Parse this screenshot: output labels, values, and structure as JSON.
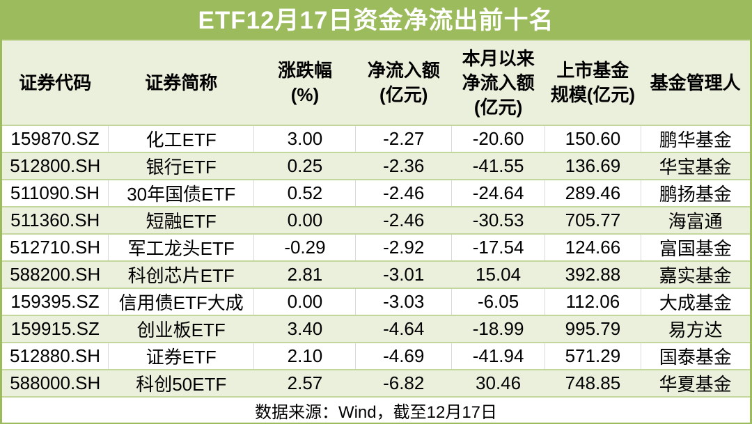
{
  "chart_data": {
    "type": "table",
    "title": "ETF12月17日资金净流出前十名",
    "columns": [
      [
        "证券代码"
      ],
      [
        "证券简称"
      ],
      [
        "涨跌幅",
        "(%)"
      ],
      [
        "净流入额",
        "(亿元)"
      ],
      [
        "本月以来",
        "净流入额",
        "(亿元)"
      ],
      [
        "上市基金",
        "规模(亿元)"
      ],
      [
        "基金管理人"
      ]
    ],
    "rows": [
      [
        "159870.SZ",
        "化工ETF",
        "3.00",
        "-2.27",
        "-20.60",
        "150.60",
        "鹏华基金"
      ],
      [
        "512800.SH",
        "银行ETF",
        "0.25",
        "-2.36",
        "-41.55",
        "136.69",
        "华宝基金"
      ],
      [
        "511090.SH",
        "30年国债ETF",
        "0.52",
        "-2.46",
        "-24.64",
        "289.46",
        "鹏扬基金"
      ],
      [
        "511360.SH",
        "短融ETF",
        "0.00",
        "-2.46",
        "-30.53",
        "705.77",
        "海富通"
      ],
      [
        "512710.SH",
        "军工龙头ETF",
        "-0.29",
        "-2.92",
        "-17.54",
        "124.66",
        "富国基金"
      ],
      [
        "588200.SH",
        "科创芯片ETF",
        "2.81",
        "-3.01",
        "15.04",
        "392.88",
        "嘉实基金"
      ],
      [
        "159395.SZ",
        "信用债ETF大成",
        "0.00",
        "-3.03",
        "-6.05",
        "112.06",
        "大成基金"
      ],
      [
        "159915.SZ",
        "创业板ETF",
        "3.40",
        "-4.64",
        "-18.99",
        "995.79",
        "易方达"
      ],
      [
        "512880.SH",
        "证券ETF",
        "2.10",
        "-4.69",
        "-41.94",
        "571.29",
        "国泰基金"
      ],
      [
        "588000.SH",
        "科创50ETF",
        "2.57",
        "-6.82",
        "30.46",
        "748.85",
        "华夏基金"
      ]
    ],
    "source_note": "数据来源：Wind，截至12月17日",
    "layout_hints": {
      "row_striping": "odd rows white, even rows pale green",
      "grid": "horizontal pale-green separators; gray vertical separators on white rows only"
    }
  },
  "colors": {
    "title_bg": "#9CBB5C",
    "title_text": "#FFFFFF",
    "header_bg": "#EBF0DC",
    "row_alt_bg": "#EBF0DC",
    "row_bg": "#FFFFFF",
    "row_separator": "#C3D69B",
    "cell_vertical_separator": "#D9D9D9",
    "outer_border": "#9CBB5C",
    "body_text": "#000000"
  }
}
